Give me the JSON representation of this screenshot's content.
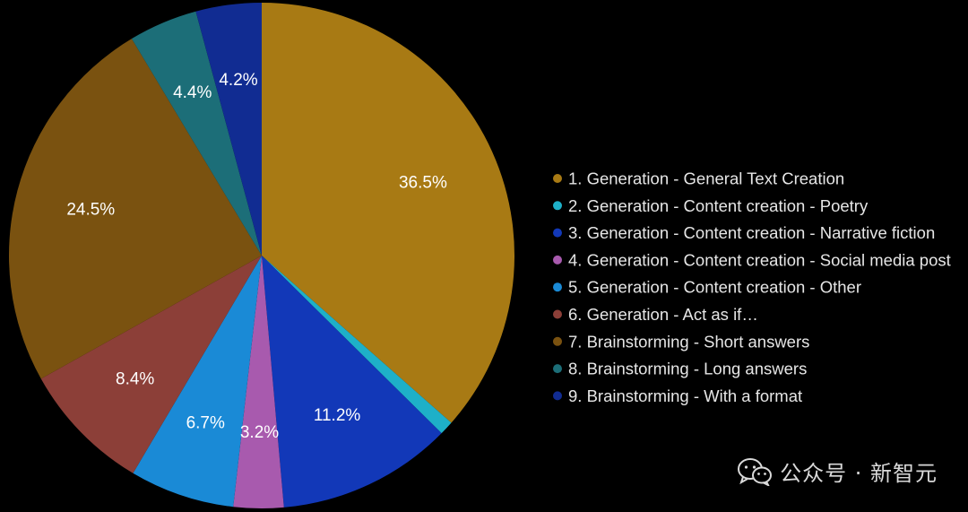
{
  "chart_data": {
    "type": "pie",
    "title": "",
    "slices": [
      {
        "name": "1. Generation - General Text Creation",
        "value": 36.5,
        "label": "36.5%",
        "color": "#A87A14"
      },
      {
        "name": "2. Generation - Content creation - Poetry",
        "value": 0.9,
        "label": "",
        "color": "#1EB0C8"
      },
      {
        "name": "3. Generation - Content creation - Narrative fiction",
        "value": 11.2,
        "label": "11.2%",
        "color": "#1238B8"
      },
      {
        "name": "4. Generation - Content creation - Social media post",
        "value": 3.2,
        "label": "3.2%",
        "color": "#A85AAE"
      },
      {
        "name": "5. Generation - Content creation - Other",
        "value": 6.7,
        "label": "6.7%",
        "color": "#1A8AD6"
      },
      {
        "name": "6. Generation - Act as if…",
        "value": 8.4,
        "label": "8.4%",
        "color": "#8C3F38"
      },
      {
        "name": "7. Brainstorming - Short answers",
        "value": 24.5,
        "label": "24.5%",
        "color": "#7A5210"
      },
      {
        "name": "8. Brainstorming - Long answers",
        "value": 4.4,
        "label": "4.4%",
        "color": "#1C6E78"
      },
      {
        "name": "9. Brainstorming - With a format",
        "value": 4.2,
        "label": "4.2%",
        "color": "#112C92"
      }
    ],
    "start_angle_deg": 0,
    "direction": "clockwise",
    "legend_position": "right"
  },
  "watermark": {
    "text": "公众号 · 新智元",
    "icon": "wechat-icon"
  },
  "colors": {
    "background": "#000000",
    "label_text": "#ffffff",
    "legend_text": "#e6e6e6"
  }
}
